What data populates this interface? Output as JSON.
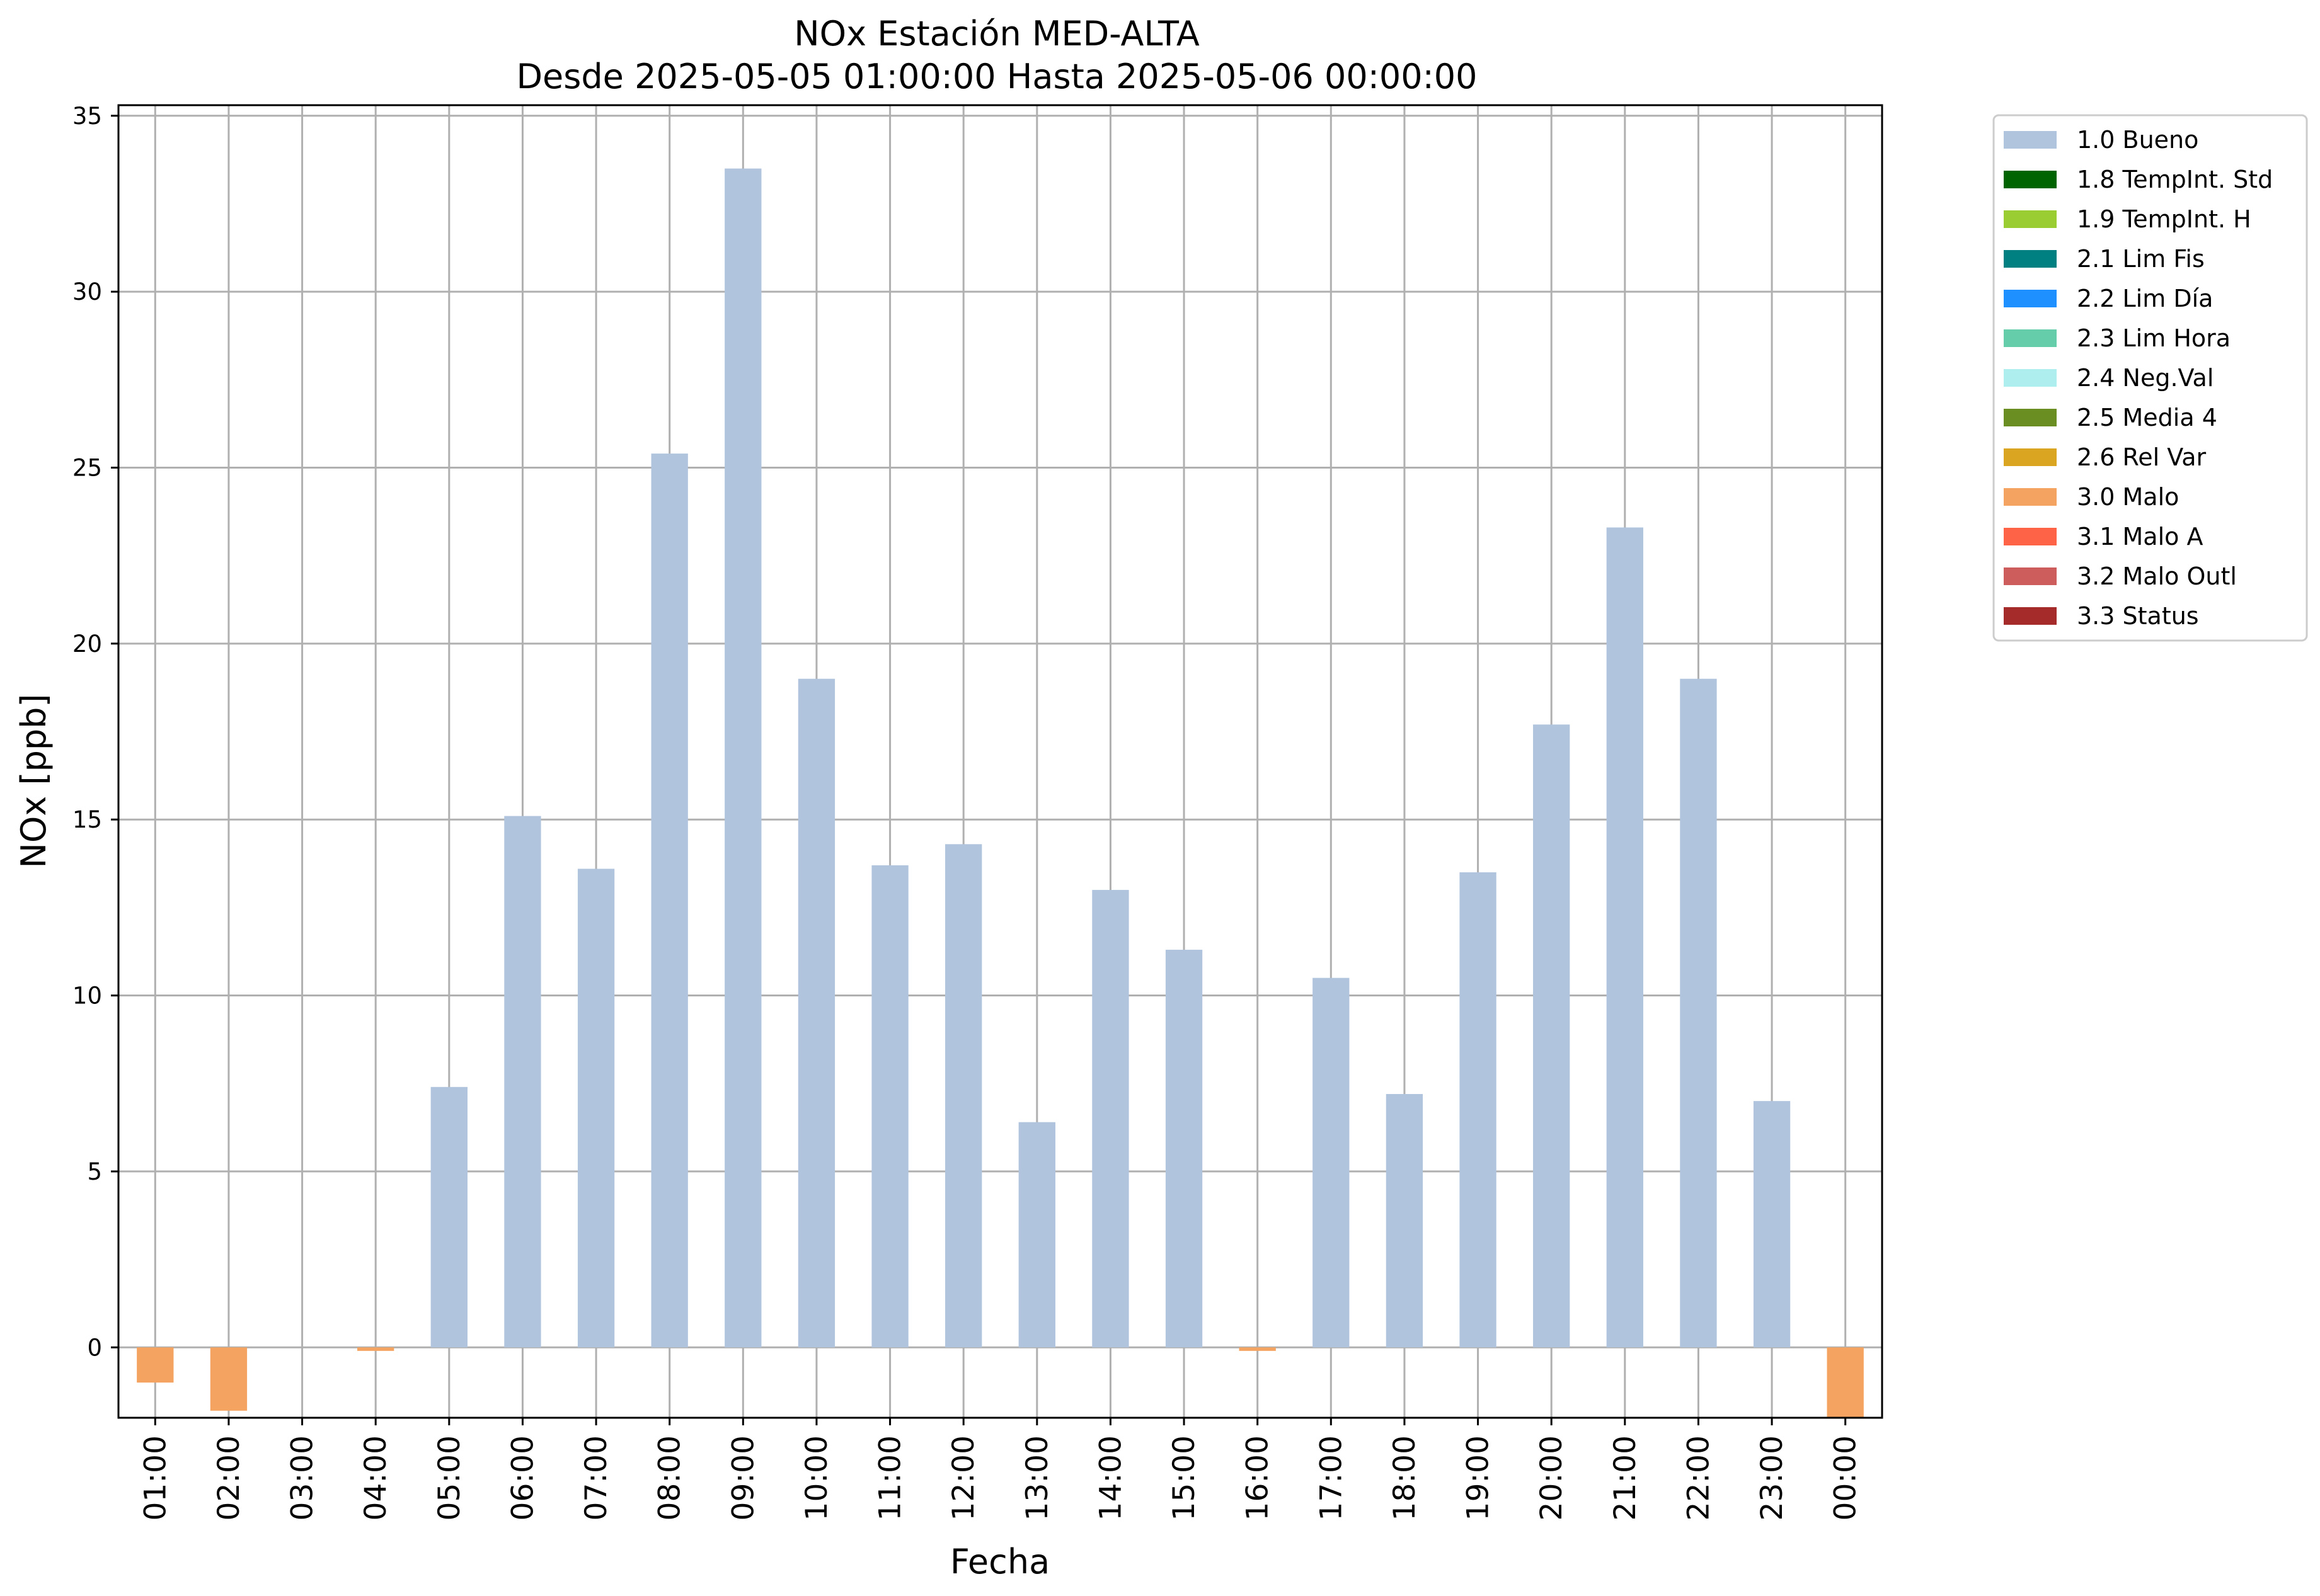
{
  "chart_data": {
    "type": "bar",
    "title": "NOx Estación MED-ALTA",
    "subtitle": "Desde 2025-05-05 01:00:00 Hasta 2025-05-06 00:00:00",
    "xlabel": "Fecha",
    "ylabel": "NOx [ppb]",
    "ylim": [
      -2,
      35.3
    ],
    "yticks": [
      0,
      5,
      10,
      15,
      20,
      25,
      30,
      35
    ],
    "grid": true,
    "legend_position": "outside right, top",
    "categories": [
      "01:00",
      "02:00",
      "03:00",
      "04:00",
      "05:00",
      "06:00",
      "07:00",
      "08:00",
      "09:00",
      "10:00",
      "11:00",
      "12:00",
      "13:00",
      "14:00",
      "15:00",
      "16:00",
      "17:00",
      "18:00",
      "19:00",
      "20:00",
      "21:00",
      "22:00",
      "23:00",
      "00:00"
    ],
    "values": [
      -1.0,
      -1.8,
      0,
      -0.1,
      7.4,
      15.1,
      13.6,
      25.4,
      33.5,
      19.0,
      13.7,
      14.3,
      6.4,
      13.0,
      11.3,
      -0.1,
      10.5,
      7.2,
      13.5,
      17.7,
      23.3,
      19.0,
      7.0,
      -2.0
    ],
    "flags": [
      "3.0 Malo",
      "3.0 Malo",
      "1.0 Bueno",
      "3.0 Malo",
      "1.0 Bueno",
      "1.0 Bueno",
      "1.0 Bueno",
      "1.0 Bueno",
      "1.0 Bueno",
      "1.0 Bueno",
      "1.0 Bueno",
      "1.0 Bueno",
      "1.0 Bueno",
      "1.0 Bueno",
      "1.0 Bueno",
      "3.0 Malo",
      "1.0 Bueno",
      "1.0 Bueno",
      "1.0 Bueno",
      "1.0 Bueno",
      "1.0 Bueno",
      "1.0 Bueno",
      "1.0 Bueno",
      "3.0 Malo"
    ],
    "legend": [
      {
        "label": "1.0 Bueno",
        "color": "#b0c4de"
      },
      {
        "label": "1.8 TempInt. Std",
        "color": "#006400"
      },
      {
        "label": "1.9 TempInt. H",
        "color": "#9acd32"
      },
      {
        "label": "2.1 Lim Fis",
        "color": "#008080"
      },
      {
        "label": "2.2 Lim Día",
        "color": "#1e90ff"
      },
      {
        "label": "2.3 Lim Hora",
        "color": "#66cdaa"
      },
      {
        "label": "2.4 Neg.Val",
        "color": "#afeeee"
      },
      {
        "label": "2.5 Media 4",
        "color": "#6b8e23"
      },
      {
        "label": "2.6 Rel Var",
        "color": "#daa520"
      },
      {
        "label": "3.0 Malo",
        "color": "#f4a460"
      },
      {
        "label": "3.1 Malo A",
        "color": "#ff6347"
      },
      {
        "label": "3.2 Malo Outl",
        "color": "#cd5c5c"
      },
      {
        "label": "3.3 Status",
        "color": "#a52a2a"
      }
    ]
  }
}
